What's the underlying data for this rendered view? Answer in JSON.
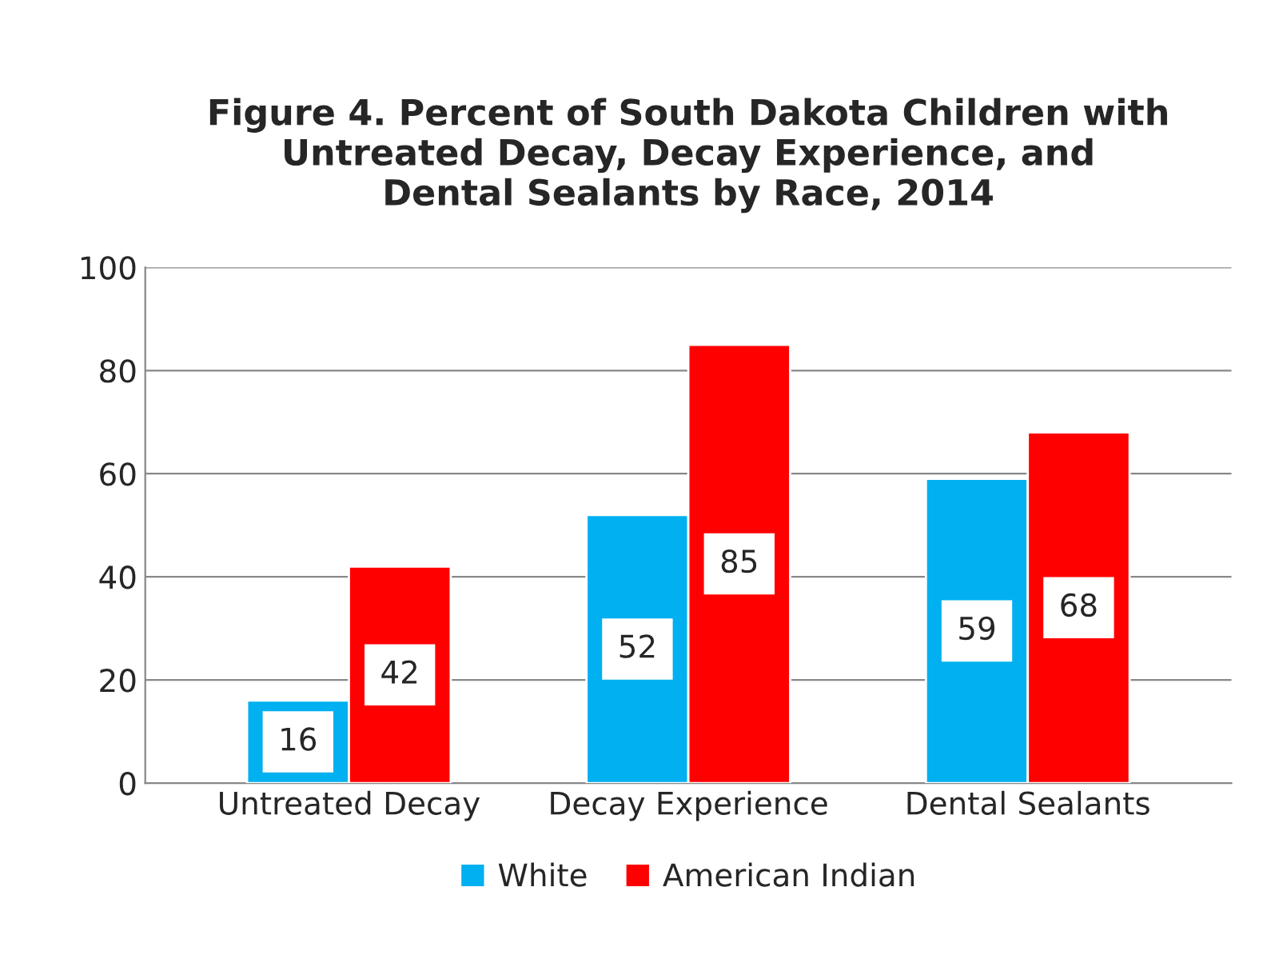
{
  "chart_data": {
    "type": "bar",
    "title": "Figure 4. Percent of South Dakota Children with\nUntreated Decay, Decay Experience, and\nDental Sealants by Race, 2014",
    "categories": [
      "Untreated Decay",
      "Decay Experience",
      "Dental Sealants"
    ],
    "series": [
      {
        "name": "White",
        "color": "#00b0f0",
        "values": [
          16,
          52,
          59
        ]
      },
      {
        "name": "American Indian",
        "color": "#ff0000",
        "values": [
          42,
          85,
          68
        ]
      }
    ],
    "ylim": [
      0,
      100
    ],
    "yticks": [
      0,
      20,
      40,
      60,
      80,
      100
    ],
    "grid": "y",
    "legend": "bottom",
    "data_labels": true
  }
}
